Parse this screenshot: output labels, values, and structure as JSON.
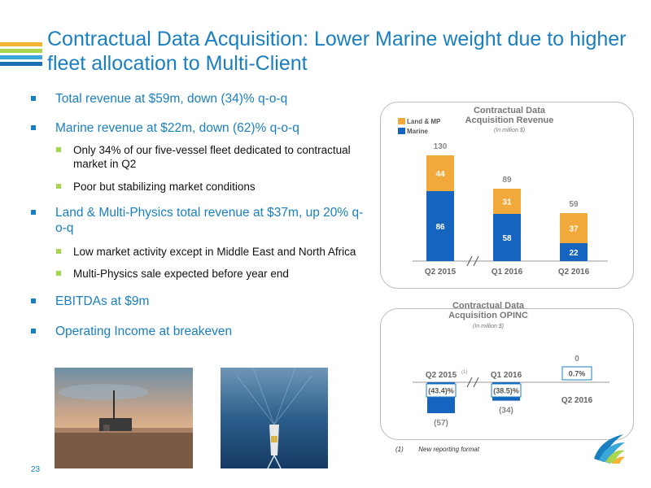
{
  "title": "Contractual Data Acquisition: Lower Marine weight due to higher fleet allocation to Multi-Client",
  "bullets": [
    {
      "text": "Total revenue at $59m, down (34)% q-o-q",
      "subs": []
    },
    {
      "text": "Marine revenue at $22m, down (62)% q-o-q",
      "subs": [
        "Only 34% of our five-vessel fleet dedicated to contractual market in Q2",
        "Poor but stabilizing market conditions"
      ]
    },
    {
      "text": "Land & Multi-Physics total revenue at $37m, up 20% q-o-q",
      "subs": [
        "Low market activity except in Middle East and North Africa",
        "Multi-Physics sale expected before year end"
      ]
    },
    {
      "text": "EBITDAs at $9m",
      "subs": []
    },
    {
      "text": "Operating Income at breakeven",
      "subs": []
    }
  ],
  "footnote": {
    "num": "(1)",
    "text": "New reporting format"
  },
  "page_number": "23",
  "colors": {
    "brand_blue": "#1a7fc1",
    "marine": "#1565c0",
    "land_mp": "#f2a93b",
    "sub_bullet": "#a8d64c"
  },
  "chart_data": [
    {
      "type": "bar",
      "stacked": true,
      "title": "Contractual Data Acquisition Revenue",
      "subtitle": "(In million $)",
      "categories": [
        "Q2 2015",
        "Q1 2016",
        "Q2 2016"
      ],
      "series": [
        {
          "name": "Marine",
          "values": [
            86,
            58,
            22
          ],
          "color": "#1565c0"
        },
        {
          "name": "Land & MP",
          "values": [
            44,
            31,
            37
          ],
          "color": "#f2a93b"
        }
      ],
      "totals": [
        130,
        89,
        59
      ],
      "legend": "top-left",
      "axis_break": "between Q2 2015 and Q1 2016",
      "ylim": [
        0,
        140
      ]
    },
    {
      "type": "bar",
      "title": "Contractual Data Acquisition OPINC",
      "subtitle": "(In million $)",
      "categories": [
        "Q2 2015",
        "Q1 2016",
        "Q2 2016"
      ],
      "category_notes": [
        "(1)",
        "",
        ""
      ],
      "values": [
        -57,
        -34,
        0
      ],
      "value_labels": [
        "(57)",
        "(34)",
        "0"
      ],
      "margin_labels": [
        "(43.4)%",
        "(38.5)%",
        "0.7%"
      ],
      "axis_break": "between Q2 2015 and Q1 2016",
      "ylim": [
        -60,
        0
      ]
    }
  ]
}
